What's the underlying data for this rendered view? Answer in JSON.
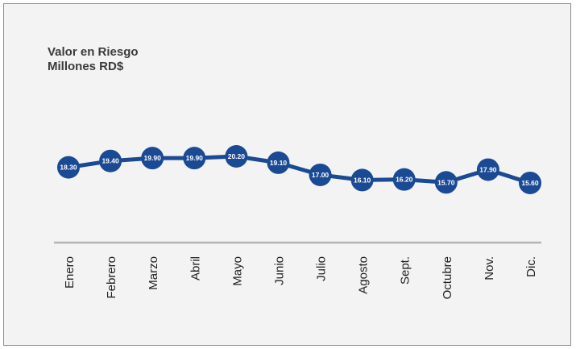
{
  "chart_data": {
    "type": "line",
    "title_lines": [
      "Valor en Riesgo",
      "Millones RD$"
    ],
    "categories": [
      "Enero",
      "Febrero",
      "Marzo",
      "Abril",
      "Mayo",
      "Junio",
      "Julio",
      "Agosto",
      "Sept.",
      "Octubre",
      "Nov.",
      "Dic."
    ],
    "values": [
      18.3,
      19.4,
      19.9,
      19.9,
      20.2,
      19.1,
      17.0,
      16.1,
      16.2,
      15.7,
      17.9,
      15.6
    ],
    "value_labels": [
      "18.30",
      "19.40",
      "19.90",
      "19.90",
      "20.20",
      "19.10",
      "17.00",
      "16.10",
      "16.20",
      "15.70",
      "17.90",
      "15.60"
    ],
    "y_axis_visible": false,
    "grid": false,
    "legend": "none",
    "colors": {
      "line": "#1b4a94",
      "marker": "#1b4a94",
      "marker_text": "#ffffff",
      "axis": "#b4b4b4"
    }
  }
}
